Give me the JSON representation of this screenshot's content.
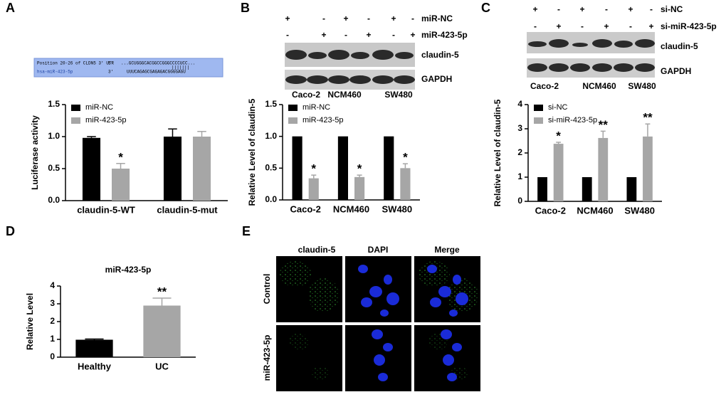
{
  "chart_data": [
    {
      "type": "bar",
      "ylabel": "Luciferase activity",
      "categories": [
        "claudin-5-WT",
        "claudin-5-mut"
      ],
      "series": [
        {
          "name": "miR-NC",
          "color": "#000000",
          "values": [
            0.98,
            1.0
          ],
          "errors": [
            0.02,
            0.12
          ],
          "significance": [
            null,
            null
          ]
        },
        {
          "name": "miR-423-5p",
          "color": "#a6a6a6",
          "values": [
            0.5,
            1.0
          ],
          "errors": [
            0.08,
            0.08
          ],
          "significance": [
            "*",
            null
          ]
        }
      ],
      "ylim": [
        0,
        1.5
      ],
      "yticks": [
        {
          "value": 0,
          "label": "0.0"
        },
        0.5,
        {
          "value": 1,
          "label": "1.0"
        },
        1.5
      ],
      "legend": "upper left"
    },
    {
      "type": "bar",
      "ylabel": "Relative Level of claudin-5",
      "categories": [
        "Caco-2",
        "NCM460",
        "SW480"
      ],
      "series": [
        {
          "name": "miR-NC",
          "color": "#000000",
          "values": [
            1,
            1,
            1
          ],
          "errors": [
            0,
            0,
            0
          ],
          "significance": [
            null,
            null,
            null
          ]
        },
        {
          "name": "miR-423-5p",
          "color": "#a6a6a6",
          "values": [
            0.34,
            0.36,
            0.5
          ],
          "errors": [
            0.05,
            0.03,
            0.07
          ],
          "significance": [
            "*",
            "*",
            "*"
          ]
        }
      ],
      "ylim": [
        0,
        1.5
      ],
      "yticks": [
        {
          "value": 0,
          "label": "0.0"
        },
        0.5,
        {
          "value": 1,
          "label": "1.0"
        },
        1.5
      ],
      "legend": "upper left"
    },
    {
      "type": "bar",
      "ylabel": "Relative Level  of claudin-5",
      "categories": [
        "Caco-2",
        "NCM460",
        "SW480"
      ],
      "series": [
        {
          "name": "si-NC",
          "color": "#000000",
          "values": [
            1,
            1,
            1
          ],
          "errors": [
            0,
            0,
            0
          ],
          "significance": [
            null,
            null,
            null
          ]
        },
        {
          "name": "si-miR-423-5p",
          "color": "#a6a6a6",
          "values": [
            2.38,
            2.62,
            2.68
          ],
          "errors": [
            0.06,
            0.28,
            0.52
          ],
          "significance": [
            "*",
            "**",
            "**"
          ]
        }
      ],
      "ylim": [
        0,
        4
      ],
      "yticks": [
        0,
        1,
        2,
        3,
        4
      ],
      "legend": "upper left"
    },
    {
      "type": "bar",
      "title": "miR-423-5p",
      "ylabel": "Relative Level",
      "categories": [
        "Healthy",
        "UC"
      ],
      "values": [
        0.98,
        2.9
      ],
      "errors": [
        0.04,
        0.42
      ],
      "significance": [
        null,
        "**"
      ],
      "colors": [
        "#000000",
        "#a6a6a6"
      ],
      "ylim": [
        0,
        4
      ],
      "yticks": [
        0,
        1,
        2,
        3,
        4
      ]
    }
  ],
  "panel_labels": [
    "A",
    "B",
    "C",
    "D",
    "E"
  ],
  "sequence": {
    "target_label": "Position 20-26 of CLDN5 3' UTR",
    "target_end": "5'",
    "target_seq": "...GCUGGGCACGGCCGGGCCCCUCC...",
    "pairing": "|||||||",
    "mirna_label": "hsa-miR-423-5p",
    "mirna_end": "3'",
    "mirna_seq": "UUUCAGAGCGAGAGACGGGGAGU"
  },
  "blot_b": {
    "rows": [
      {
        "name": "miR-NC",
        "signs": [
          "+",
          "-",
          "+",
          "-",
          "+",
          "-"
        ]
      },
      {
        "name": "miR-423-5p",
        "signs": [
          "-",
          "+",
          "-",
          "+",
          "-",
          "+"
        ]
      }
    ],
    "bands": [
      "claudin-5",
      "GAPDH"
    ],
    "cells": [
      "Caco-2",
      "NCM460",
      "SW480"
    ]
  },
  "blot_c": {
    "rows": [
      {
        "name": "si-NC",
        "signs": [
          "+",
          "-",
          "+",
          "-",
          "+",
          "-"
        ]
      },
      {
        "name": "si-miR-423-5p",
        "signs": [
          "-",
          "+",
          "-",
          "+",
          "-",
          "+"
        ]
      }
    ],
    "bands": [
      "claudin-5",
      "GAPDH"
    ],
    "cells": [
      "Caco-2",
      "NCM460",
      "SW480"
    ]
  },
  "microscopy": {
    "columns": [
      "claudin-5",
      "DAPI",
      "Merge"
    ],
    "rows": [
      "Control",
      "miR-423-5p"
    ]
  }
}
